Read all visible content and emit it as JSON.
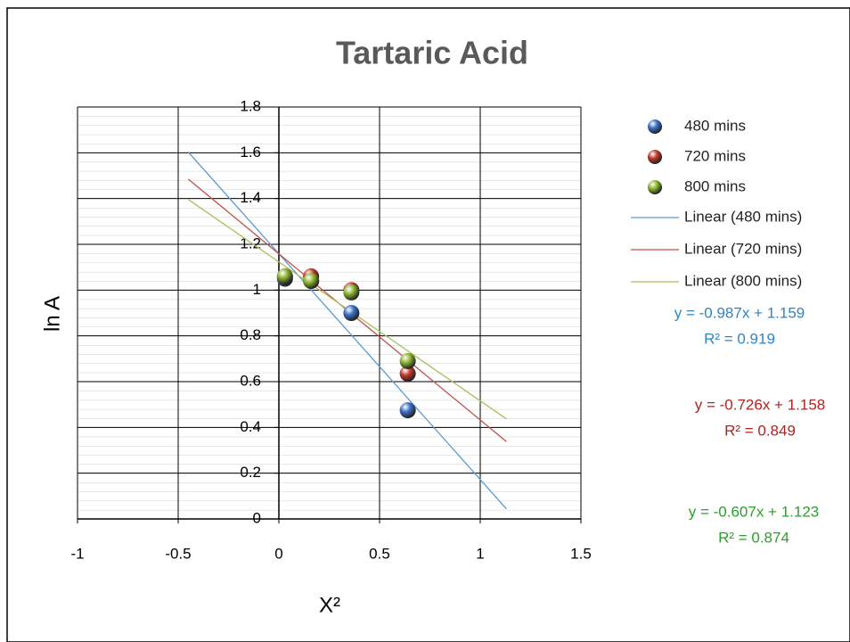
{
  "chart_data": {
    "type": "scatter",
    "title": "Tartaric Acid",
    "x_label": "X²",
    "y_label": "ln A",
    "xlim": [
      -1,
      1.5
    ],
    "xticks": [
      -1,
      -0.5,
      0,
      0.5,
      1,
      1.5
    ],
    "ylim": [
      0,
      1.8
    ],
    "yticks": [
      0,
      0.2,
      0.4,
      0.6,
      0.8,
      1,
      1.2,
      1.4,
      1.6,
      1.8
    ],
    "grid": true,
    "legend": "right",
    "series": [
      {
        "name": "480 mins",
        "color": "#3a6fc4",
        "x": [
          0.03,
          0.16,
          0.36,
          0.64
        ],
        "values": [
          1.05,
          1.04,
          0.9,
          0.475
        ]
      },
      {
        "name": "720 mins",
        "color": "#c0392b",
        "x": [
          0.03,
          0.16,
          0.36,
          0.64
        ],
        "values": [
          1.06,
          1.06,
          1.0,
          0.635
        ]
      },
      {
        "name": "800 mins",
        "color": "#8db32f",
        "x": [
          0.03,
          0.16,
          0.36,
          0.64
        ],
        "values": [
          1.06,
          1.04,
          0.99,
          0.69
        ]
      }
    ],
    "trendlines": [
      {
        "name": "Linear (480 mins)",
        "color": "#5a9bd0",
        "x": [
          -0.45,
          1.13
        ],
        "values": [
          1.603,
          0.044
        ],
        "equation": "y = -0.987x + 1.159",
        "r2": "R² = 0.919",
        "label_color": "#2e86c1"
      },
      {
        "name": "Linear (720 mins)",
        "color": "#c0504d",
        "x": [
          -0.45,
          1.13
        ],
        "values": [
          1.485,
          0.338
        ],
        "equation": "y = -0.726x + 1.158",
        "r2": "R² = 0.849",
        "label_color": "#b22222"
      },
      {
        "name": "Linear (800 mins)",
        "color": "#a5c25c",
        "x": [
          -0.45,
          1.13
        ],
        "values": [
          1.396,
          0.437
        ],
        "equation": "y = -0.607x + 1.123",
        "r2": "R² = 0.874",
        "label_color": "#2ca02c"
      }
    ]
  }
}
